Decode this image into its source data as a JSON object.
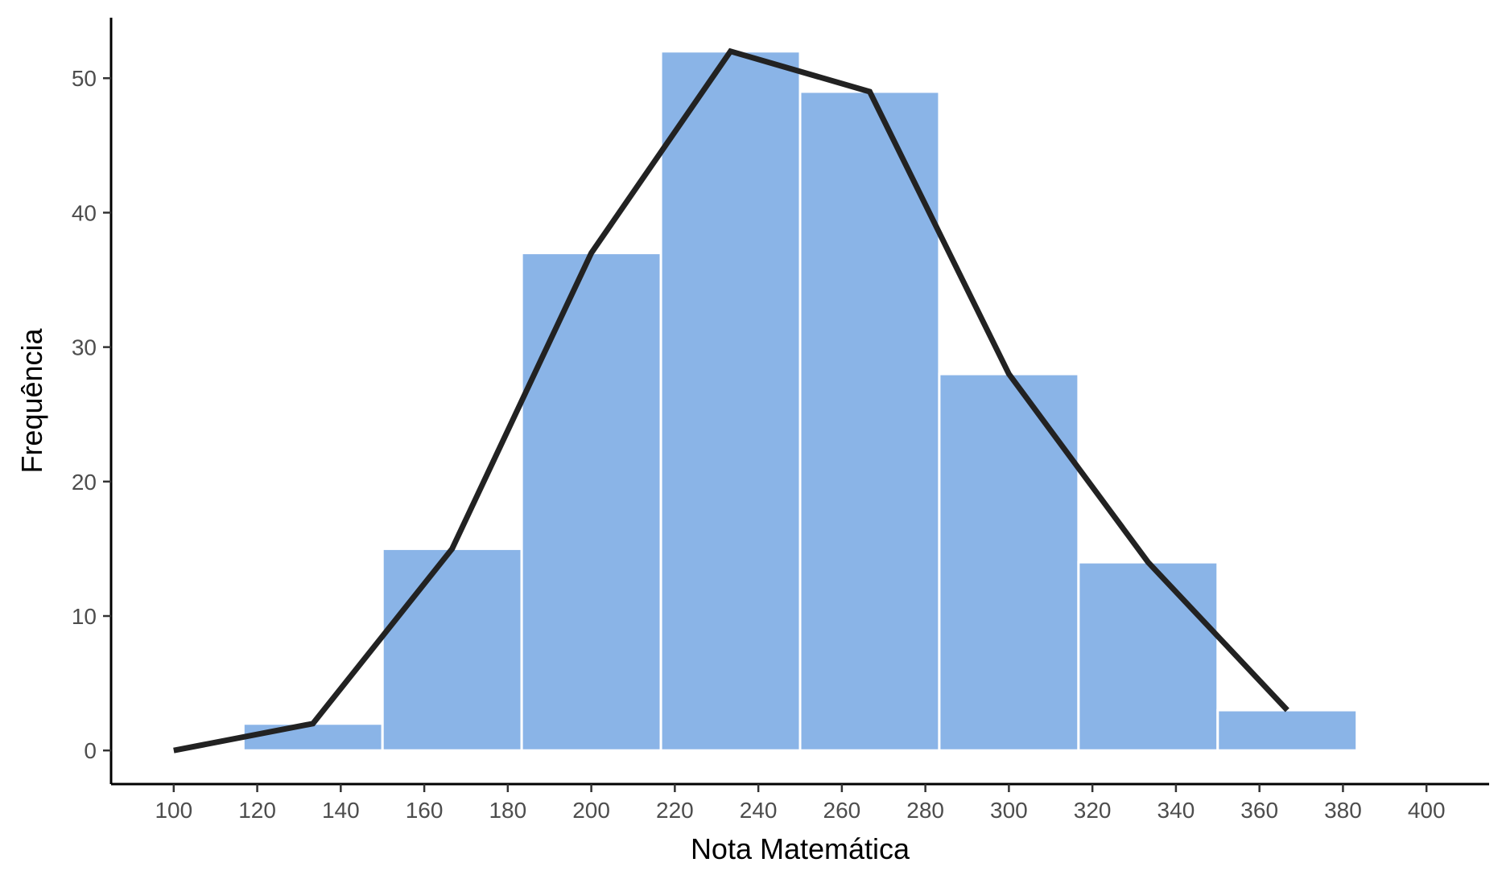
{
  "chart_data": {
    "type": "bar",
    "xlabel": "Nota Matemática",
    "ylabel": "Frequência",
    "xlim": [
      85,
      415
    ],
    "ylim": [
      -2.5,
      54.5
    ],
    "x_ticks": [
      100,
      120,
      140,
      160,
      180,
      200,
      220,
      240,
      260,
      280,
      300,
      320,
      340,
      360,
      380,
      400
    ],
    "y_ticks": [
      0,
      10,
      20,
      30,
      40,
      50
    ],
    "bins": [
      {
        "x0": 116.67,
        "x1": 150.0,
        "count": 2
      },
      {
        "x0": 150.0,
        "x1": 183.33,
        "count": 15
      },
      {
        "x0": 183.33,
        "x1": 216.67,
        "count": 37
      },
      {
        "x0": 216.67,
        "x1": 250.0,
        "count": 52
      },
      {
        "x0": 250.0,
        "x1": 283.33,
        "count": 49
      },
      {
        "x0": 283.33,
        "x1": 316.67,
        "count": 28
      },
      {
        "x0": 316.67,
        "x1": 350.0,
        "count": 14
      },
      {
        "x0": 350.0,
        "x1": 383.33,
        "count": 3
      }
    ],
    "series": [
      {
        "type": "line",
        "x": [
          100,
          133.33,
          166.67,
          200,
          233.33,
          266.67,
          300,
          333.33,
          366.67
        ],
        "values": [
          0,
          2,
          15,
          37,
          52,
          49,
          28,
          14,
          3
        ]
      }
    ],
    "colors": {
      "bar": "#8ab4e7",
      "bar_border": "#ffffff",
      "line": "#222222",
      "axis": "#000000"
    },
    "grid": false
  }
}
